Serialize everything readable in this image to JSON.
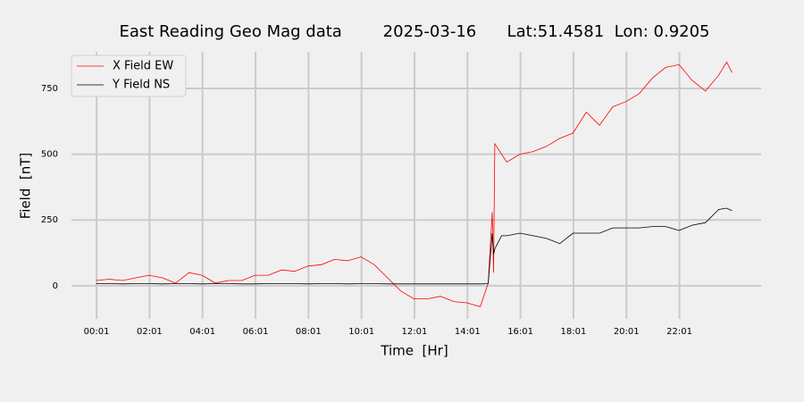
{
  "chart_data": {
    "type": "line",
    "title": "East Reading Geo Mag data        2025-03-16      Lat:51.4581  Lon: 0.9205",
    "xlabel": "Time  [Hr]",
    "ylabel": "Field  [nT]",
    "x": [
      0,
      0.5,
      1,
      1.5,
      2,
      2.5,
      3,
      3.5,
      4,
      4.5,
      5,
      5.5,
      6,
      6.5,
      7,
      7.5,
      8,
      8.5,
      9,
      9.5,
      10,
      10.5,
      11,
      11.5,
      12,
      12.5,
      13,
      13.5,
      14,
      14.5,
      14.8,
      14.95,
      15.0,
      15.05,
      15.3,
      15.5,
      16,
      16.5,
      17,
      17.5,
      18,
      18.5,
      19,
      19.5,
      20,
      20.5,
      21,
      21.5,
      22,
      22.5,
      23,
      23.5,
      23.8,
      24
    ],
    "series": [
      {
        "name": "X Field EW",
        "color": "#ff0000",
        "values": [
          20,
          25,
          20,
          30,
          40,
          30,
          10,
          50,
          40,
          10,
          20,
          20,
          40,
          40,
          60,
          55,
          75,
          80,
          100,
          95,
          110,
          80,
          30,
          -20,
          -50,
          -50,
          -40,
          -60,
          -65,
          -80,
          10,
          280,
          50,
          540,
          500,
          470,
          500,
          510,
          530,
          560,
          580,
          660,
          610,
          680,
          700,
          730,
          790,
          830,
          840,
          780,
          740,
          800,
          850,
          810
        ]
      },
      {
        "name": "Y Field NS",
        "color": "#000000",
        "values": [
          8,
          8,
          7,
          8,
          8,
          7,
          8,
          8,
          7,
          8,
          8,
          7,
          7,
          8,
          8,
          8,
          7,
          8,
          8,
          7,
          8,
          8,
          7,
          7,
          7,
          7,
          7,
          7,
          7,
          7,
          8,
          200,
          120,
          140,
          190,
          190,
          200,
          190,
          180,
          160,
          200,
          200,
          200,
          220,
          220,
          220,
          225,
          225,
          210,
          230,
          240,
          290,
          295,
          285
        ]
      }
    ],
    "xlim": [
      -0.93,
      25.1
    ],
    "ylim": [
      -126,
      889
    ],
    "xticks": [
      {
        "value": 0.0167,
        "label": "00:01"
      },
      {
        "value": 2.0167,
        "label": "02:01"
      },
      {
        "value": 4.0167,
        "label": "04:01"
      },
      {
        "value": 6.0167,
        "label": "06:01"
      },
      {
        "value": 8.0167,
        "label": "08:01"
      },
      {
        "value": 10.0167,
        "label": "10:01"
      },
      {
        "value": 12.0167,
        "label": "12:01"
      },
      {
        "value": 14.0167,
        "label": "14:01"
      },
      {
        "value": 16.0167,
        "label": "16:01"
      },
      {
        "value": 18.0167,
        "label": "18:01"
      },
      {
        "value": 20.0167,
        "label": "20:01"
      },
      {
        "value": 22.0167,
        "label": "22:01"
      }
    ],
    "yticks": [
      0,
      250,
      500,
      750
    ],
    "grid": true,
    "legend": "upper left"
  }
}
